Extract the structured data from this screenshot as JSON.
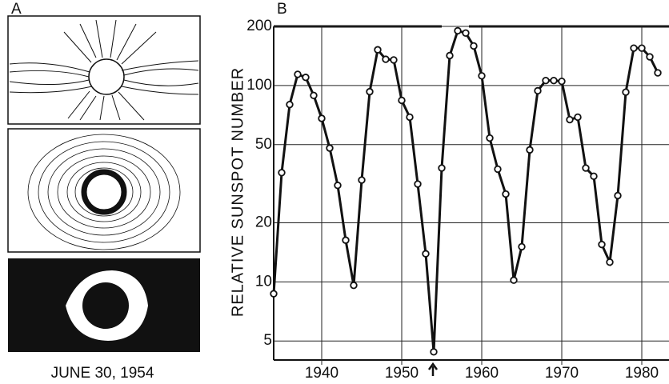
{
  "panel_a": {
    "label": "A",
    "caption": "JUNE 30, 1954"
  },
  "chart_data": {
    "type": "line",
    "panel_label": "B",
    "y_label": "RELATIVE SUNSPOT NUMBER",
    "log_y": true,
    "grid": true,
    "xlim": [
      1934,
      1983.4
    ],
    "xticks": [
      1940,
      1950,
      1960,
      1970,
      1980
    ],
    "ylim": [
      4,
      200
    ],
    "yticks": [
      5,
      10,
      20,
      50,
      100,
      200
    ],
    "series": [
      {
        "color": "#111111",
        "x": [
          1934,
          1935,
          1936,
          1937,
          1938,
          1939,
          1940,
          1941,
          1942,
          1943,
          1944,
          1945,
          1946,
          1947,
          1948,
          1949,
          1950,
          1951,
          1952,
          1953,
          1954,
          1955,
          1956,
          1957,
          1958,
          1959,
          1960,
          1961,
          1962,
          1963,
          1964,
          1965,
          1966,
          1967,
          1968,
          1969,
          1970,
          1971,
          1972,
          1973,
          1974,
          1975,
          1976,
          1977,
          1978,
          1979,
          1980,
          1981,
          1982
        ],
        "values": [
          8.7,
          36,
          80,
          114,
          110,
          89,
          68,
          48,
          31,
          16.3,
          9.6,
          33,
          93,
          152,
          136,
          135,
          84,
          69,
          31.5,
          13.9,
          4.4,
          38,
          142,
          190,
          185,
          159,
          112,
          54,
          37.5,
          28,
          10.2,
          15.1,
          47,
          94,
          106,
          106,
          105,
          67,
          69,
          38,
          34.5,
          15.5,
          12.6,
          27.5,
          92.5,
          155,
          155,
          140,
          116
        ]
      }
    ]
  }
}
